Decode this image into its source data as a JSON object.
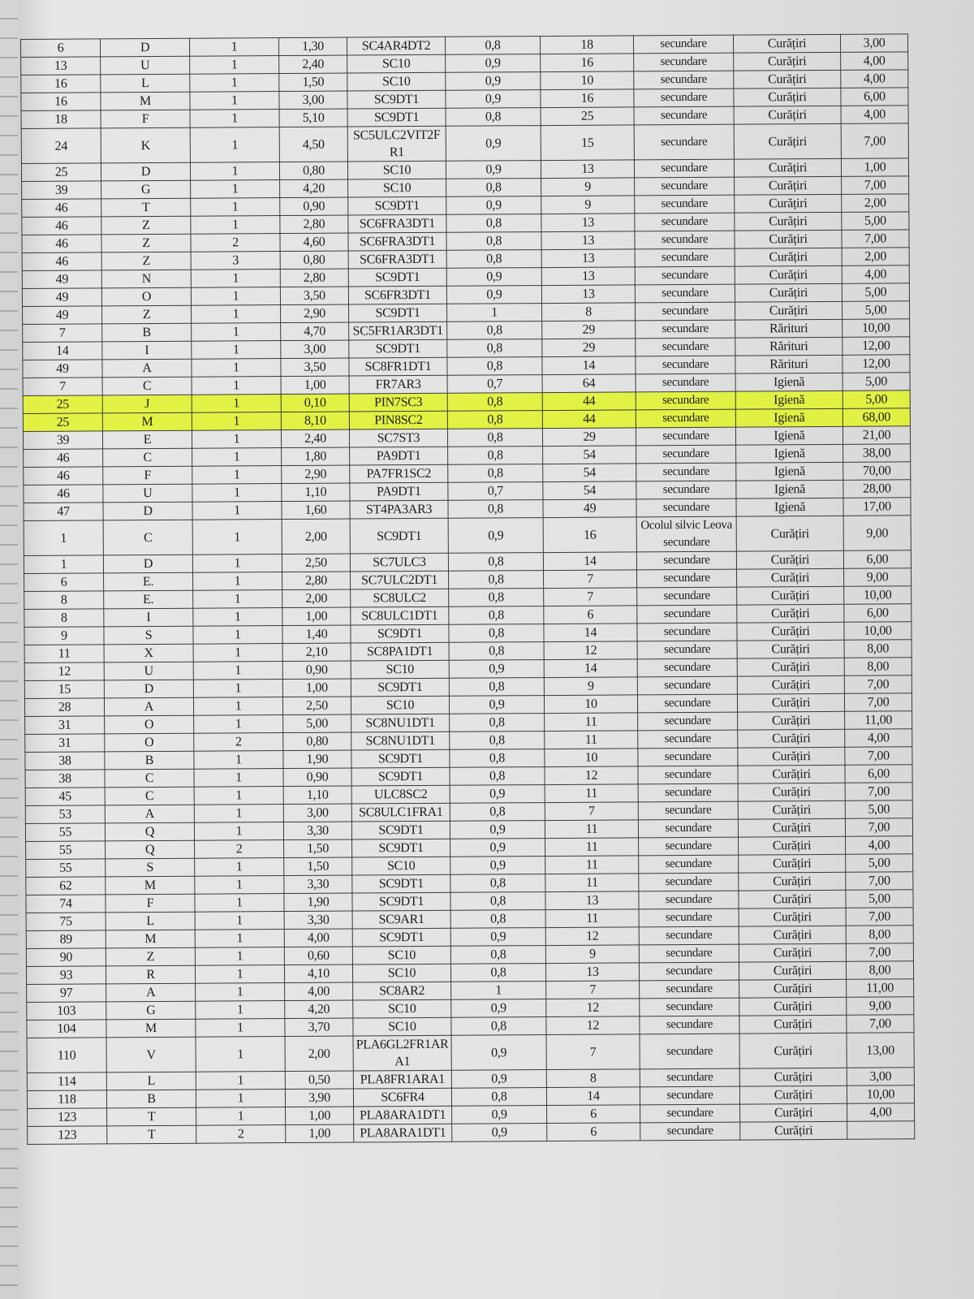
{
  "table": {
    "rows": [
      {
        "cells": [
          "6",
          "D",
          "1",
          "1,30",
          "SC4AR4DT2",
          "0,8",
          "18",
          "secundare",
          "Curățiri",
          "3,00"
        ]
      },
      {
        "cells": [
          "13",
          "U",
          "1",
          "2,40",
          "SC10",
          "0,9",
          "16",
          "secundare",
          "Curățiri",
          "4,00"
        ]
      },
      {
        "cells": [
          "16",
          "L",
          "1",
          "1,50",
          "SC10",
          "0,9",
          "10",
          "secundare",
          "Curățiri",
          "4,00"
        ]
      },
      {
        "cells": [
          "16",
          "M",
          "1",
          "3,00",
          "SC9DT1",
          "0,9",
          "16",
          "secundare",
          "Curățiri",
          "6,00"
        ]
      },
      {
        "cells": [
          "18",
          "F",
          "1",
          "5,10",
          "SC9DT1",
          "0,8",
          "25",
          "secundare",
          "Curățiri",
          "4,00"
        ]
      },
      {
        "cells": [
          "24",
          "K",
          "1",
          "4,50",
          "SC5ULC2VIT2FR1",
          "0,9",
          "15",
          "secundare",
          "Curățiri",
          "7,00"
        ]
      },
      {
        "cells": [
          "25",
          "D",
          "1",
          "0,80",
          "SC10",
          "0,9",
          "13",
          "secundare",
          "Curățiri",
          "1,00"
        ]
      },
      {
        "cells": [
          "39",
          "G",
          "1",
          "4,20",
          "SC10",
          "0,8",
          "9",
          "secundare",
          "Curățiri",
          "7,00"
        ]
      },
      {
        "cells": [
          "46",
          "T",
          "1",
          "0,90",
          "SC9DT1",
          "0,9",
          "9",
          "secundare",
          "Curățiri",
          "2,00"
        ]
      },
      {
        "cells": [
          "46",
          "Z",
          "1",
          "2,80",
          "SC6FRA3DT1",
          "0,8",
          "13",
          "secundare",
          "Curățiri",
          "5,00"
        ]
      },
      {
        "cells": [
          "46",
          "Z",
          "2",
          "4,60",
          "SC6FRA3DT1",
          "0,8",
          "13",
          "secundare",
          "Curățiri",
          "7,00"
        ]
      },
      {
        "cells": [
          "46",
          "Z",
          "3",
          "0,80",
          "SC6FRA3DT1",
          "0,8",
          "13",
          "secundare",
          "Curățiri",
          "2,00"
        ]
      },
      {
        "cells": [
          "49",
          "N",
          "1",
          "2,80",
          "SC9DT1",
          "0,9",
          "13",
          "secundare",
          "Curățiri",
          "4,00"
        ]
      },
      {
        "cells": [
          "49",
          "O",
          "1",
          "3,50",
          "SC6FR3DT1",
          "0,9",
          "13",
          "secundare",
          "Curățiri",
          "5,00"
        ]
      },
      {
        "cells": [
          "49",
          "Z",
          "1",
          "2,90",
          "SC9DT1",
          "1",
          "8",
          "secundare",
          "Curățiri",
          "5,00"
        ]
      },
      {
        "cells": [
          "7",
          "B",
          "1",
          "4,70",
          "SC5FR1AR3DT1",
          "0,8",
          "29",
          "secundare",
          "Rărituri",
          "10,00"
        ]
      },
      {
        "cells": [
          "14",
          "I",
          "1",
          "3,00",
          "SC9DT1",
          "0,8",
          "29",
          "secundare",
          "Rărituri",
          "12,00"
        ]
      },
      {
        "cells": [
          "49",
          "A",
          "1",
          "3,50",
          "SC8FR1DT1",
          "0,8",
          "14",
          "secundare",
          "Rărituri",
          "12,00"
        ]
      },
      {
        "cells": [
          "7",
          "C",
          "1",
          "1,00",
          "FR7AR3",
          "0,7",
          "64",
          "secundare",
          "Igienă",
          "5,00"
        ]
      },
      {
        "cells": [
          "25",
          "J",
          "1",
          "0,10",
          "PIN7SC3",
          "0,8",
          "44",
          "secundare",
          "Igienă",
          "5,00"
        ],
        "highlighted": true
      },
      {
        "cells": [
          "25",
          "M",
          "1",
          "8,10",
          "PIN8SC2",
          "0,8",
          "44",
          "secundare",
          "Igienă",
          "68,00"
        ],
        "highlighted": true
      },
      {
        "cells": [
          "39",
          "E",
          "1",
          "2,40",
          "SC7ST3",
          "0,8",
          "29",
          "secundare",
          "Igienă",
          "21,00"
        ]
      },
      {
        "cells": [
          "46",
          "C",
          "1",
          "1,80",
          "PA9DT1",
          "0,8",
          "54",
          "secundare",
          "Igienă",
          "38,00"
        ]
      },
      {
        "cells": [
          "46",
          "F",
          "1",
          "2,90",
          "PA7FR1SC2",
          "0,8",
          "54",
          "secundare",
          "Igienă",
          "70,00"
        ]
      },
      {
        "cells": [
          "46",
          "U",
          "1",
          "1,10",
          "PA9DT1",
          "0,7",
          "54",
          "secundare",
          "Igienă",
          "28,00"
        ]
      },
      {
        "cells": [
          "47",
          "D",
          "1",
          "1,60",
          "ST4PA3AR3",
          "0,8",
          "49",
          "secundare",
          "Igienă",
          "17,00"
        ]
      },
      {
        "cells": [
          "1",
          "C",
          "1",
          "2,00",
          "SC9DT1",
          "0,9",
          "16",
          "Ocolul silvic Leova secundare",
          "Curățiri",
          "9,00"
        ]
      },
      {
        "cells": [
          "1",
          "D",
          "1",
          "2,50",
          "SC7ULC3",
          "0,8",
          "14",
          "secundare",
          "Curățiri",
          "6,00"
        ]
      },
      {
        "cells": [
          "6",
          "E.",
          "1",
          "2,80",
          "SC7ULC2DT1",
          "0,8",
          "7",
          "secundare",
          "Curățiri",
          "9,00"
        ]
      },
      {
        "cells": [
          "8",
          "E.",
          "1",
          "2,00",
          "SC8ULC2",
          "0,8",
          "7",
          "secundare",
          "Curățiri",
          "10,00"
        ]
      },
      {
        "cells": [
          "8",
          "I",
          "1",
          "1,00",
          "SC8ULC1DT1",
          "0,8",
          "6",
          "secundare",
          "Curățiri",
          "6,00"
        ]
      },
      {
        "cells": [
          "9",
          "S",
          "1",
          "1,40",
          "SC9DT1",
          "0,8",
          "14",
          "secundare",
          "Curățiri",
          "10,00"
        ]
      },
      {
        "cells": [
          "11",
          "X",
          "1",
          "2,10",
          "SC8PA1DT1",
          "0,8",
          "12",
          "secundare",
          "Curățiri",
          "8,00"
        ]
      },
      {
        "cells": [
          "12",
          "U",
          "1",
          "0,90",
          "SC10",
          "0,9",
          "14",
          "secundare",
          "Curățiri",
          "8,00"
        ]
      },
      {
        "cells": [
          "15",
          "D",
          "1",
          "1,00",
          "SC9DT1",
          "0,8",
          "9",
          "secundare",
          "Curățiri",
          "7,00"
        ]
      },
      {
        "cells": [
          "28",
          "A",
          "1",
          "2,50",
          "SC10",
          "0,9",
          "10",
          "secundare",
          "Curățiri",
          "7,00"
        ]
      },
      {
        "cells": [
          "31",
          "O",
          "1",
          "5,00",
          "SC8NU1DT1",
          "0,8",
          "11",
          "secundare",
          "Curățiri",
          "11,00"
        ]
      },
      {
        "cells": [
          "31",
          "O",
          "2",
          "0,80",
          "SC8NU1DT1",
          "0,8",
          "11",
          "secundare",
          "Curățiri",
          "4,00"
        ]
      },
      {
        "cells": [
          "38",
          "B",
          "1",
          "1,90",
          "SC9DT1",
          "0,8",
          "10",
          "secundare",
          "Curățiri",
          "7,00"
        ]
      },
      {
        "cells": [
          "38",
          "C",
          "1",
          "0,90",
          "SC9DT1",
          "0,8",
          "12",
          "secundare",
          "Curățiri",
          "6,00"
        ]
      },
      {
        "cells": [
          "45",
          "C",
          "1",
          "1,10",
          "ULC8SC2",
          "0,9",
          "11",
          "secundare",
          "Curățiri",
          "7,00"
        ]
      },
      {
        "cells": [
          "53",
          "A",
          "1",
          "3,00",
          "SC8ULC1FRA1",
          "0,8",
          "7",
          "secundare",
          "Curățiri",
          "5,00"
        ]
      },
      {
        "cells": [
          "55",
          "Q",
          "1",
          "3,30",
          "SC9DT1",
          "0,9",
          "11",
          "secundare",
          "Curățiri",
          "7,00"
        ]
      },
      {
        "cells": [
          "55",
          "Q",
          "2",
          "1,50",
          "SC9DT1",
          "0,9",
          "11",
          "secundare",
          "Curățiri",
          "4,00"
        ]
      },
      {
        "cells": [
          "55",
          "S",
          "1",
          "1,50",
          "SC10",
          "0,9",
          "11",
          "secundare",
          "Curățiri",
          "5,00"
        ]
      },
      {
        "cells": [
          "62",
          "M",
          "1",
          "3,30",
          "SC9DT1",
          "0,8",
          "11",
          "secundare",
          "Curățiri",
          "7,00"
        ]
      },
      {
        "cells": [
          "74",
          "F",
          "1",
          "1,90",
          "SC9DT1",
          "0,8",
          "13",
          "secundare",
          "Curățiri",
          "5,00"
        ]
      },
      {
        "cells": [
          "75",
          "L",
          "1",
          "3,30",
          "SC9AR1",
          "0,8",
          "11",
          "secundare",
          "Curățiri",
          "7,00"
        ]
      },
      {
        "cells": [
          "89",
          "M",
          "1",
          "4,00",
          "SC9DT1",
          "0,9",
          "12",
          "secundare",
          "Curățiri",
          "8,00"
        ]
      },
      {
        "cells": [
          "90",
          "Z",
          "1",
          "0,60",
          "SC10",
          "0,8",
          "9",
          "secundare",
          "Curățiri",
          "7,00"
        ]
      },
      {
        "cells": [
          "93",
          "R",
          "1",
          "4,10",
          "SC10",
          "0,8",
          "13",
          "secundare",
          "Curățiri",
          "8,00"
        ]
      },
      {
        "cells": [
          "97",
          "A",
          "1",
          "4,00",
          "SC8AR2",
          "1",
          "7",
          "secundare",
          "Curățiri",
          "11,00"
        ]
      },
      {
        "cells": [
          "103",
          "G",
          "1",
          "4,20",
          "SC10",
          "0,9",
          "12",
          "secundare",
          "Curățiri",
          "9,00"
        ]
      },
      {
        "cells": [
          "104",
          "M",
          "1",
          "3,70",
          "SC10",
          "0,8",
          "12",
          "secundare",
          "Curățiri",
          "7,00"
        ]
      },
      {
        "cells": [
          "110",
          "V",
          "1",
          "2,00",
          "PLA6GL2FR1ARA1",
          "0,9",
          "7",
          "secundare",
          "Curățiri",
          "13,00"
        ]
      },
      {
        "cells": [
          "114",
          "L",
          "1",
          "0,50",
          "PLA8FR1ARA1",
          "0,9",
          "8",
          "secundare",
          "Curățiri",
          "3,00"
        ]
      },
      {
        "cells": [
          "118",
          "B",
          "1",
          "3,90",
          "SC6FR4",
          "0,8",
          "14",
          "secundare",
          "Curățiri",
          "10,00"
        ]
      },
      {
        "cells": [
          "123",
          "T",
          "1",
          "1,00",
          "PLA8ARA1DT1",
          "0,9",
          "6",
          "secundare",
          "Curățiri",
          "4,00"
        ]
      },
      {
        "cells": [
          "123",
          "T",
          "2",
          "1,00",
          "PLA8ARA1DT1",
          "0,9",
          "6",
          "secundare",
          "Curățiri",
          ""
        ]
      }
    ]
  },
  "colors": {
    "highlight": "#e2f528",
    "ink": "#1e1e1e",
    "paper": "#e3e3e3"
  }
}
